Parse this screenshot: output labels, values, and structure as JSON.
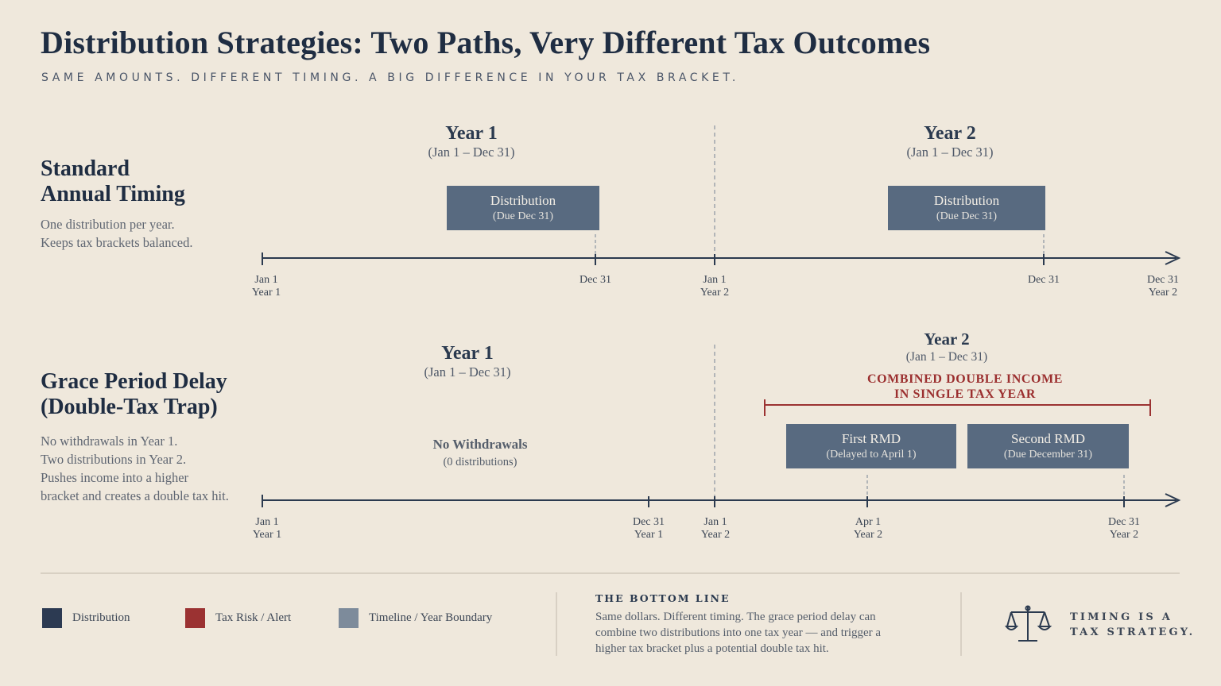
{
  "header": {
    "title": "Distribution Strategies: Two Paths, Very Different Tax Outcomes",
    "subtitle": "SAME AMOUNTS. DIFFERENT TIMING. A BIG DIFFERENCE IN YOUR TAX BRACKET."
  },
  "standard": {
    "title_line1": "Standard",
    "title_line2": "Annual Timing",
    "desc_line1": "One distribution per year.",
    "desc_line2": "Keeps tax brackets balanced.",
    "year1": {
      "label": "Year 1",
      "range": "(Jan 1 – Dec 31)"
    },
    "year2": {
      "label": "Year 2",
      "range": "(Jan 1 – Dec 31)"
    },
    "box1": {
      "label": "Distribution",
      "sub": "(Due Dec 31)"
    },
    "box2": {
      "label": "Distribution",
      "sub": "(Due Dec 31)"
    },
    "ticks": [
      {
        "l1": "Jan 1",
        "l2": "Year 1"
      },
      {
        "l1": "Dec 31",
        "l2": ""
      },
      {
        "l1": "Jan 1",
        "l2": "Year 2"
      },
      {
        "l1": "Dec 31",
        "l2": ""
      },
      {
        "l1": "Dec 31",
        "l2": "Year 2"
      }
    ]
  },
  "grace": {
    "title_line1": "Grace Period Delay",
    "title_line2": "(Double-Tax Trap)",
    "desc_lines": [
      "No withdrawals in Year 1.",
      "Two distributions in Year 2.",
      "Pushes income into a higher",
      "bracket and creates a double tax hit."
    ],
    "year1": {
      "label": "Year 1",
      "range": "(Jan 1 – Dec 31)"
    },
    "year2": {
      "label": "Year 2",
      "range": "(Jan 1 – Dec 31)"
    },
    "no_withdrawals": {
      "label": "No Withdrawals",
      "sub": "(0 distributions)"
    },
    "alert_line1": "COMBINED DOUBLE INCOME",
    "alert_line2": "IN SINGLE TAX YEAR",
    "box1": {
      "label": "First RMD",
      "sub": "(Delayed to April 1)"
    },
    "box2": {
      "label": "Second RMD",
      "sub": "(Due December 31)"
    },
    "ticks": [
      {
        "l1": "Jan 1",
        "l2": "Year 1"
      },
      {
        "l1": "Dec 31",
        "l2": "Year 1"
      },
      {
        "l1": "Jan 1",
        "l2": "Year 2"
      },
      {
        "l1": "Apr 1",
        "l2": "Year 2"
      },
      {
        "l1": "Dec 31",
        "l2": "Year 2"
      }
    ]
  },
  "legend": [
    {
      "label": "Distribution",
      "color": "#2c3a52"
    },
    {
      "label": "Tax Risk / Alert",
      "color": "#9b3232"
    },
    {
      "label": "Timeline / Year Boundary",
      "color": "#7d8b9b"
    }
  ],
  "bottom_line": {
    "heading": "THE BOTTOM LINE",
    "lines": [
      "Same dollars. Different timing. The grace period delay can",
      "combine two distributions into one tax year — and trigger a",
      "higher tax bracket plus a potential double tax hit."
    ]
  },
  "tagline": {
    "line1": "TIMING IS A",
    "line2": "TAX STRATEGY."
  },
  "icons": {
    "scales": "balance-scale-icon"
  },
  "colors": {
    "background": "#efe8dc",
    "navy": "#2c3a52",
    "box": "#586a80",
    "alert_red": "#9b3232",
    "gray": "#7d8b9b"
  }
}
